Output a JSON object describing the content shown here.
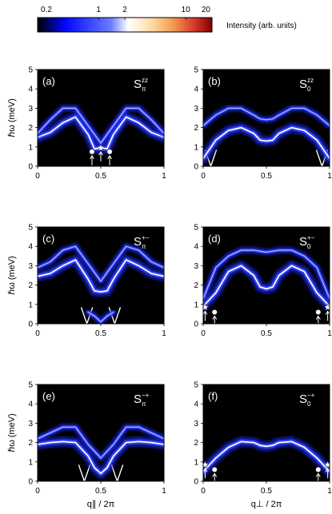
{
  "chart_data": {
    "type": "heatmap",
    "colorbar": {
      "label": "Intensity (arb. units)",
      "scale": "log",
      "range": [
        0.2,
        20
      ],
      "ticks": [
        "0.2",
        "1",
        "2",
        "10",
        "20"
      ],
      "colors": [
        "#000000",
        "#0008ff",
        "#6b7bff",
        "#ffffff",
        "#ffe0b0",
        "#f3a052",
        "#d5362b",
        "#7f0000"
      ]
    },
    "axes_text": {
      "ylabel": "ℏω (meV)",
      "xlabel_left": "q∥ / 2π",
      "xlabel_right": "q⊥ / 2π",
      "xticks": [
        "0",
        "0.5",
        "1"
      ],
      "yticks": [
        "0",
        "1",
        "2",
        "3",
        "4",
        "5"
      ],
      "xlim": [
        0,
        1
      ],
      "ylim": [
        0,
        5
      ]
    },
    "panels": [
      {
        "id": "(a)",
        "title": "S",
        "sub": "π",
        "sup": "zz",
        "series": [
          {
            "name": "main",
            "x": [
              0,
              0.1,
              0.2,
              0.3,
              0.4,
              0.45,
              0.5,
              0.55,
              0.6,
              0.7,
              0.8,
              0.9,
              1
            ],
            "y": [
              1.5,
              1.75,
              2.25,
              2.55,
              1.65,
              0.9,
              0.95,
              0.9,
              1.65,
              2.55,
              2.25,
              1.75,
              1.5
            ]
          },
          {
            "name": "upper",
            "x": [
              0,
              0.1,
              0.2,
              0.3,
              0.4,
              0.5,
              0.6,
              0.7,
              0.8,
              0.9,
              1
            ],
            "y": [
              1.7,
              2.4,
              3.0,
              3.0,
              2.1,
              1.2,
              2.1,
              3.0,
              3.0,
              2.4,
              1.7
            ]
          }
        ],
        "v_markers": [],
        "points": [
          {
            "x": 0.43,
            "y": 0.75,
            "shape": "circle"
          },
          {
            "x": 0.5,
            "y": 0.95,
            "shape": "star"
          },
          {
            "x": 0.57,
            "y": 0.75,
            "shape": "circle"
          }
        ]
      },
      {
        "id": "(b)",
        "title": "S",
        "sub": "0",
        "sup": "zz",
        "series": [
          {
            "name": "lower",
            "x": [
              0,
              0.1,
              0.2,
              0.3,
              0.4,
              0.45,
              0.5,
              0.55,
              0.6,
              0.7,
              0.8,
              0.9,
              1
            ],
            "y": [
              0.4,
              1.35,
              1.85,
              2.0,
              1.7,
              1.35,
              1.3,
              1.35,
              1.7,
              2.0,
              1.85,
              1.35,
              0.4
            ]
          },
          {
            "name": "upper",
            "x": [
              0,
              0.1,
              0.2,
              0.3,
              0.4,
              0.45,
              0.5,
              0.55,
              0.6,
              0.7,
              0.8,
              0.9,
              1
            ],
            "y": [
              2.1,
              2.65,
              3.0,
              3.0,
              2.65,
              2.45,
              2.4,
              2.45,
              2.65,
              3.0,
              3.0,
              2.65,
              2.1
            ]
          }
        ],
        "v_markers": [
          0.06,
          0.94
        ],
        "points": []
      },
      {
        "id": "(c)",
        "title": "S",
        "sub": "π",
        "sup": "+−",
        "series": [
          {
            "name": "main",
            "x": [
              0,
              0.1,
              0.2,
              0.3,
              0.4,
              0.45,
              0.5,
              0.55,
              0.6,
              0.7,
              0.8,
              0.9,
              1
            ],
            "y": [
              2.45,
              2.6,
              3.0,
              3.3,
              2.3,
              1.7,
              1.65,
              1.7,
              2.3,
              3.3,
              3.0,
              2.6,
              2.45
            ]
          },
          {
            "name": "upper",
            "x": [
              0,
              0.1,
              0.2,
              0.3,
              0.4,
              0.5,
              0.6,
              0.7,
              0.8,
              0.9,
              1
            ],
            "y": [
              2.9,
              3.2,
              3.8,
              4.0,
              3.1,
              2.2,
              3.1,
              4.0,
              3.8,
              3.2,
              2.9
            ]
          },
          {
            "name": "low",
            "x": [
              0.4,
              0.45,
              0.5,
              0.55,
              0.6
            ],
            "y": [
              0.6,
              0.4,
              0.1,
              0.4,
              0.6
            ]
          }
        ],
        "v_markers": [
          0.39,
          0.61
        ],
        "points": []
      },
      {
        "id": "(d)",
        "title": "S",
        "sub": "0",
        "sup": "+−",
        "series": [
          {
            "name": "lower",
            "x": [
              0,
              0.1,
              0.2,
              0.3,
              0.4,
              0.45,
              0.5,
              0.55,
              0.6,
              0.7,
              0.8,
              0.9,
              1
            ],
            "y": [
              0.9,
              1.6,
              2.7,
              3.0,
              2.5,
              1.9,
              1.8,
              1.9,
              2.5,
              3.0,
              2.7,
              1.6,
              0.9
            ]
          },
          {
            "name": "upper",
            "x": [
              0,
              0.1,
              0.2,
              0.3,
              0.4,
              0.5,
              0.6,
              0.7,
              0.8,
              0.9,
              1
            ],
            "y": [
              1.3,
              2.9,
              3.5,
              3.8,
              3.8,
              3.7,
              3.8,
              3.8,
              3.5,
              2.9,
              1.3
            ]
          }
        ],
        "v_markers": [],
        "points": [
          {
            "x": 0.015,
            "y": 0.85,
            "shape": "star"
          },
          {
            "x": 0.09,
            "y": 0.6,
            "shape": "circle"
          },
          {
            "x": 0.91,
            "y": 0.6,
            "shape": "circle"
          },
          {
            "x": 0.985,
            "y": 0.85,
            "shape": "star"
          }
        ]
      },
      {
        "id": "(e)",
        "title": "S",
        "sub": "π",
        "sup": "−+",
        "series": [
          {
            "name": "main",
            "x": [
              0,
              0.1,
              0.2,
              0.3,
              0.4,
              0.45,
              0.5,
              0.55,
              0.6,
              0.7,
              0.8,
              0.9,
              1
            ],
            "y": [
              1.9,
              2.0,
              2.05,
              2.0,
              1.3,
              0.7,
              0.4,
              0.7,
              1.3,
              2.0,
              2.05,
              2.0,
              1.9
            ]
          },
          {
            "name": "upper",
            "x": [
              0,
              0.1,
              0.2,
              0.3,
              0.4,
              0.5,
              0.6,
              0.7,
              0.8,
              0.9,
              1
            ],
            "y": [
              2.2,
              2.5,
              2.8,
              2.8,
              1.9,
              1.2,
              1.9,
              2.8,
              2.8,
              2.5,
              2.2
            ]
          }
        ],
        "v_markers": [
          0.37,
          0.63
        ],
        "points": []
      },
      {
        "id": "(f)",
        "title": "S",
        "sub": "0",
        "sup": "−+",
        "series": [
          {
            "name": "main",
            "x": [
              0,
              0.1,
              0.2,
              0.3,
              0.4,
              0.45,
              0.5,
              0.55,
              0.6,
              0.7,
              0.8,
              0.9,
              1
            ],
            "y": [
              0.5,
              1.2,
              1.75,
              2.05,
              2.0,
              1.85,
              1.8,
              1.85,
              2.0,
              2.05,
              1.75,
              1.2,
              0.5
            ]
          }
        ],
        "v_markers": [],
        "points": [
          {
            "x": 0.015,
            "y": 0.85,
            "shape": "star"
          },
          {
            "x": 0.09,
            "y": 0.6,
            "shape": "circle"
          },
          {
            "x": 0.91,
            "y": 0.6,
            "shape": "circle"
          },
          {
            "x": 0.985,
            "y": 0.85,
            "shape": "star"
          }
        ]
      }
    ]
  }
}
